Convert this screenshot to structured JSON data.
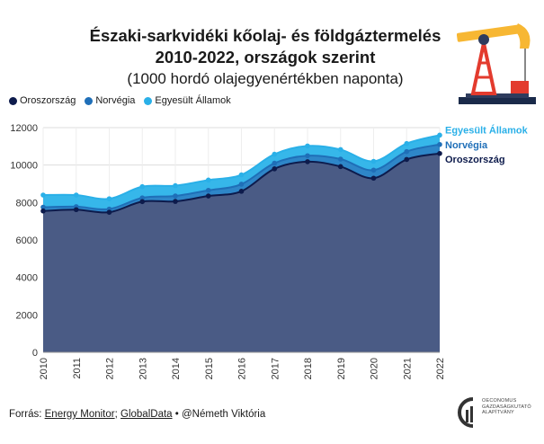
{
  "title": {
    "line1": "Északi-sarkvidéki kőolaj- és földgáztermelés",
    "line2": "2010-2022, országok szerint",
    "line3": "(1000 hordó olajegyenértékben naponta)"
  },
  "source": {
    "prefix": "Forrás:",
    "link1": "Energy Monitor",
    "sep": ";",
    "link2": "GlobalData",
    "suffix": "• @Németh Viktória"
  },
  "logo": {
    "line1": "OECONOMUS",
    "line2": "GAZDASÁGKUTATÓ",
    "line3": "ALAPÍTVÁNY"
  },
  "colors": {
    "russia": "#0d1b4c",
    "norway": "#1f6fb8",
    "usa": "#2ab0e8",
    "fill_russia": "#4a5b85",
    "fill_norway": "#2e86c8",
    "fill_usa": "#36b7ea"
  },
  "chart_data": {
    "type": "area",
    "stacked": false,
    "x": [
      "2010",
      "2011",
      "2012",
      "2013",
      "2014",
      "2015",
      "2016",
      "2017",
      "2018",
      "2019",
      "2020",
      "2021",
      "2022"
    ],
    "series": [
      {
        "name": "Oroszország",
        "values": [
          7550,
          7620,
          7480,
          8050,
          8060,
          8350,
          8600,
          9800,
          10180,
          9920,
          9300,
          10300,
          10620
        ]
      },
      {
        "name": "Norvégia",
        "values": [
          7750,
          7780,
          7650,
          8250,
          8350,
          8650,
          8980,
          10100,
          10500,
          10320,
          9730,
          10720,
          11100
        ]
      },
      {
        "name": "Egyesült Államok",
        "values": [
          8400,
          8400,
          8200,
          8850,
          8900,
          9200,
          9480,
          10580,
          11020,
          10830,
          10200,
          11150,
          11600
        ]
      }
    ],
    "ylim": [
      0,
      12000
    ],
    "yticks": [
      0,
      2000,
      4000,
      6000,
      8000,
      10000,
      12000
    ],
    "xlabel": "",
    "ylabel": "",
    "grid": true,
    "end_labels": [
      "Egyesült Államok",
      "Norvégia",
      "Oroszország"
    ]
  }
}
